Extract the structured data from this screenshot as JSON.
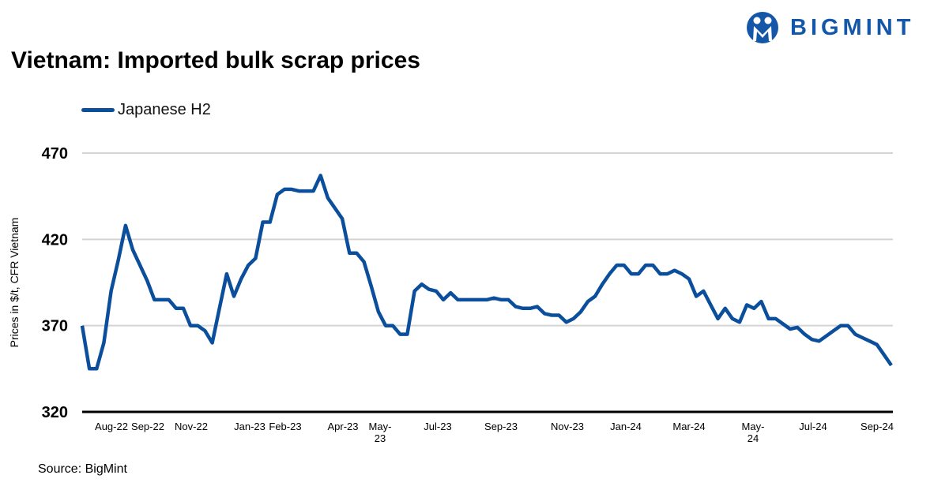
{
  "logo": {
    "text": "BIGMINT",
    "color": "#1457a8"
  },
  "chart_data": {
    "type": "line",
    "title": "Vietnam: Imported bulk scrap prices",
    "ylabel": "Prices in $/t, CFR Vietnam",
    "xlabel": "",
    "ylim": [
      320,
      470
    ],
    "yticks": [
      "470",
      "420",
      "370",
      "320"
    ],
    "xticks": [
      "Aug-22",
      "Sep-22",
      "Nov-22",
      "Jan-23",
      "Feb-23",
      "Apr-23",
      "May-23",
      "Jul-23",
      "Sep-23",
      "Nov-23",
      "Jan-24",
      "Mar-24",
      "May-24",
      "Jul-24",
      "Sep-24"
    ],
    "grid": true,
    "legend": "top-left",
    "series": [
      {
        "name": "Japanese H2",
        "color": "#0b4f9c",
        "values": [
          370,
          345,
          345,
          360,
          390,
          408,
          428,
          414,
          405,
          396,
          385,
          385,
          385,
          380,
          380,
          370,
          370,
          367,
          360,
          380,
          400,
          387,
          397,
          405,
          409,
          430,
          430,
          446,
          449,
          449,
          448,
          448,
          448,
          457,
          444,
          438,
          432,
          412,
          412,
          407,
          393,
          378,
          370,
          370,
          365,
          365,
          390,
          394,
          391,
          390,
          385,
          389,
          385,
          385,
          385,
          385,
          385,
          386,
          385,
          385,
          381,
          380,
          380,
          381,
          377,
          376,
          376,
          372,
          374,
          378,
          384,
          387,
          394,
          400,
          405,
          405,
          400,
          400,
          405,
          405,
          400,
          400,
          402,
          400,
          397,
          387,
          390,
          382,
          374,
          380,
          374,
          372,
          382,
          380,
          384,
          374,
          374,
          371,
          368,
          369,
          365,
          362,
          361,
          364,
          367,
          370,
          370,
          365,
          363,
          361,
          359,
          353,
          347
        ]
      }
    ]
  },
  "source": "Source: BigMint"
}
